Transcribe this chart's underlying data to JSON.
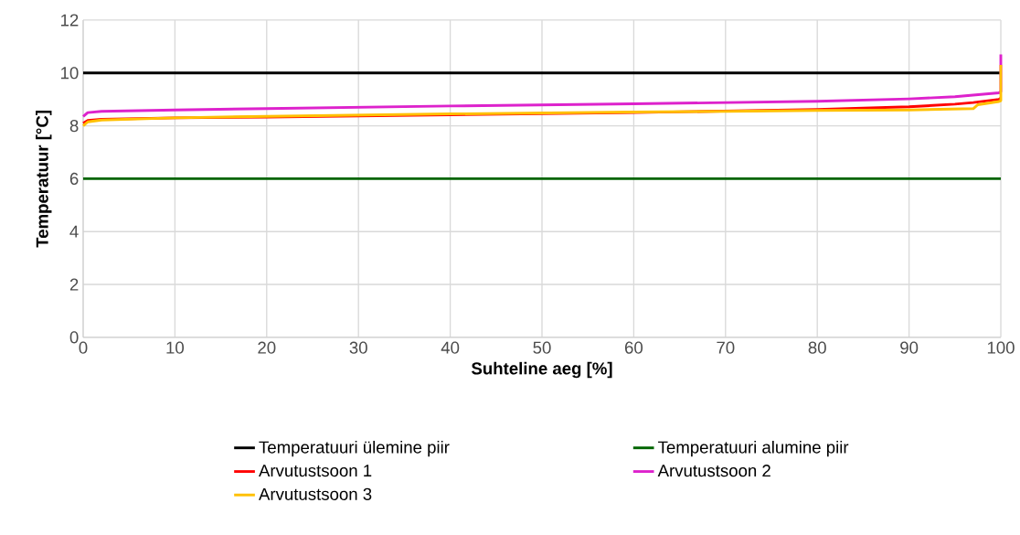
{
  "chart_data": {
    "type": "line",
    "xlabel": "Suhteline aeg [%]",
    "ylabel": "Temperatuur [°C]",
    "xlim": [
      0,
      100
    ],
    "ylim": [
      0,
      12
    ],
    "xticks": [
      0,
      10,
      20,
      30,
      40,
      50,
      60,
      70,
      80,
      90,
      100
    ],
    "yticks": [
      0,
      2,
      4,
      6,
      8,
      10,
      12
    ],
    "grid": true,
    "legend": "bottom",
    "marker": "none",
    "line_style": "solid",
    "series": [
      {
        "name": "Temperatuuri ülemine piir",
        "color": "#000000",
        "x": [
          0,
          100
        ],
        "values": [
          10,
          10
        ]
      },
      {
        "name": "Temperatuuri alumine piir",
        "color": "#006400",
        "x": [
          0,
          100
        ],
        "values": [
          6,
          6
        ]
      },
      {
        "name": "Arvutustsoon 1",
        "color": "#ff0000",
        "x": [
          0,
          0.5,
          2,
          10,
          20,
          40,
          60,
          80,
          90,
          95,
          97,
          99.8,
          100
        ],
        "values": [
          8.1,
          8.2,
          8.25,
          8.3,
          8.33,
          8.42,
          8.5,
          8.62,
          8.72,
          8.82,
          8.88,
          9.0,
          9.05
        ]
      },
      {
        "name": "Arvutustsoon 2",
        "color": "#dd22cc",
        "x": [
          0,
          0.5,
          2,
          10,
          20,
          40,
          60,
          80,
          90,
          95,
          99.8,
          100,
          100
        ],
        "values": [
          8.35,
          8.5,
          8.55,
          8.6,
          8.65,
          8.75,
          8.83,
          8.93,
          9.02,
          9.1,
          9.25,
          9.3,
          10.7
        ]
      },
      {
        "name": "Arvutustsoon 3",
        "color": "#ffc000",
        "x": [
          0,
          0.5,
          2,
          10,
          20,
          40,
          60,
          70,
          80,
          90,
          97,
          97.5,
          99.8,
          100,
          100
        ],
        "values": [
          8.0,
          8.15,
          8.22,
          8.3,
          8.36,
          8.45,
          8.52,
          8.55,
          8.58,
          8.6,
          8.65,
          8.8,
          8.92,
          8.95,
          10.3
        ]
      }
    ]
  }
}
